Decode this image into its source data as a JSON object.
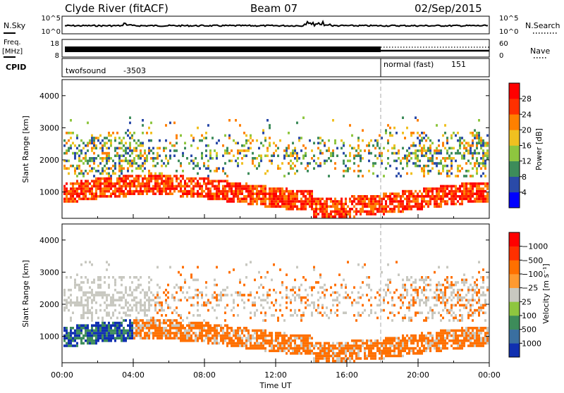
{
  "header": {
    "title": "Clyde River (fitACF)",
    "beam": "Beam 07",
    "date": "02/Sep/2015"
  },
  "noise_panel": {
    "left_label": "N.Sky",
    "right_label": "N.Search",
    "left_ticks": [
      "10^5",
      "10^0"
    ],
    "right_ticks": [
      "10^5",
      "10^0"
    ]
  },
  "freq_panel": {
    "left_label_top": "Freq.",
    "left_label_unit": "[MHz]",
    "right_label": "Nave",
    "left_ticks": [
      "18",
      "8"
    ],
    "right_ticks": [
      "60",
      "0"
    ]
  },
  "cpid_panel": {
    "label": "CPID",
    "modes": [
      {
        "name": "twofsound",
        "id": "-3503",
        "start_hour": 0
      },
      {
        "name": "normal (fast)",
        "id": "151",
        "start_hour": 18
      }
    ]
  },
  "chart_data": [
    {
      "type": "heatmap",
      "name": "power",
      "ylabel": "Slant Range [km]",
      "colorbar_label": "Power [dB]",
      "colorbar_ticks": [
        4,
        8,
        12,
        16,
        20,
        24,
        28
      ],
      "colorbar_colors": [
        "#0000ff",
        "#2a4aa8",
        "#3d8c5a",
        "#8ec63f",
        "#f0c020",
        "#ff8000",
        "#ff3000",
        "#ff0000"
      ],
      "ylim": [
        180,
        4500
      ],
      "y_ticks": [
        1000,
        2000,
        3000,
        4000
      ],
      "xlim": [
        0,
        24
      ],
      "x_tick_labels": [
        "00:00",
        "04:00",
        "08:00",
        "12:00",
        "16:00",
        "20:00",
        "00:00"
      ]
    },
    {
      "type": "heatmap",
      "name": "velocity",
      "ylabel": "Slant Range [km]",
      "colorbar_label": "Velocity [m s⁻¹]",
      "colorbar_ticks": [
        "1000",
        "500",
        "100",
        "25",
        "−25",
        "−100",
        "−500",
        "−1000"
      ],
      "colorbar_colors": [
        "#1030b0",
        "#3a6fa0",
        "#3d8c5a",
        "#8ec63f",
        "#c8c8c0",
        "#ff9a30",
        "#ff7000",
        "#ff3000",
        "#ff0000"
      ],
      "ylim": [
        180,
        4500
      ],
      "y_ticks": [
        1000,
        2000,
        3000,
        4000
      ],
      "xlim": [
        0,
        24
      ],
      "x_tick_labels": [
        "00:00",
        "04:00",
        "08:00",
        "12:00",
        "16:00",
        "20:00",
        "00:00"
      ],
      "xlabel": "Time UT"
    }
  ]
}
